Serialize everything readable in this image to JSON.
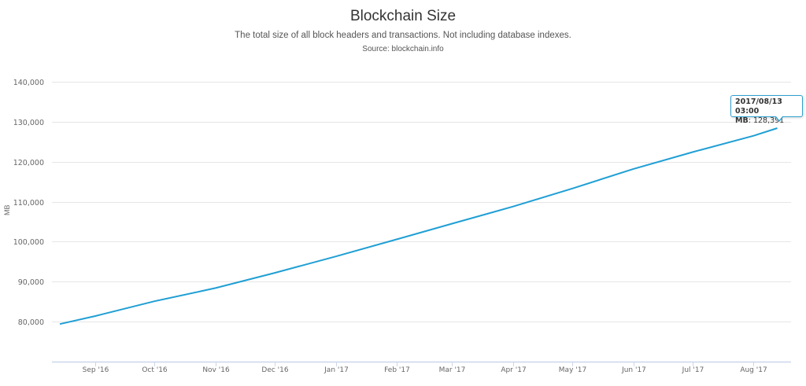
{
  "header": {
    "title": "Blockchain Size",
    "subtitle": "The total size of all block headers and transactions. Not including database indexes.",
    "source": "Source: blockchain.info"
  },
  "colors": {
    "line": "#1f9fd4",
    "grid": "#e6e6e6",
    "axis": "#ccd6eb",
    "tooltip_border": "#2f9fd0",
    "text": "#333333",
    "tick_text": "#666666"
  },
  "tooltip": {
    "date": "2017/08/13 03:00",
    "key": "MB",
    "value": "128,391"
  },
  "chart_data": {
    "type": "line",
    "title": "Blockchain Size",
    "subtitle": "The total size of all block headers and transactions. Not including database indexes.",
    "credit": "Source: blockchain.info",
    "xlabel": "",
    "ylabel": "MB",
    "ylim": [
      70000,
      140000
    ],
    "yticks": [
      80000,
      90000,
      100000,
      110000,
      120000,
      130000,
      140000
    ],
    "ytick_labels": [
      "80,000",
      "90,000",
      "100,000",
      "110,000",
      "120,000",
      "130,000",
      "140,000"
    ],
    "xtick_labels": [
      "Sep '16",
      "Oct '16",
      "Nov '16",
      "Dec '16",
      "Jan '17",
      "Feb '17",
      "Mar '17",
      "Apr '17",
      "May '17",
      "Jun '17",
      "Jul '17",
      "Aug '17"
    ],
    "grid": true,
    "legend": false,
    "series": [
      {
        "name": "MB",
        "x": [
          "2016-08-14",
          "2016-09-01",
          "2016-10-01",
          "2016-11-01",
          "2016-12-01",
          "2017-01-01",
          "2017-02-01",
          "2017-03-01",
          "2017-04-01",
          "2017-05-01",
          "2017-06-01",
          "2017-07-01",
          "2017-08-01",
          "2017-08-13"
        ],
        "values": [
          79400,
          81400,
          85100,
          88400,
          92200,
          96300,
          100600,
          104500,
          108800,
          113300,
          118200,
          122400,
          126500,
          128391
        ]
      }
    ],
    "annotations": [
      {
        "type": "tooltip",
        "x": "2017/08/13 03:00",
        "label": "MB",
        "value": 128391
      }
    ]
  }
}
